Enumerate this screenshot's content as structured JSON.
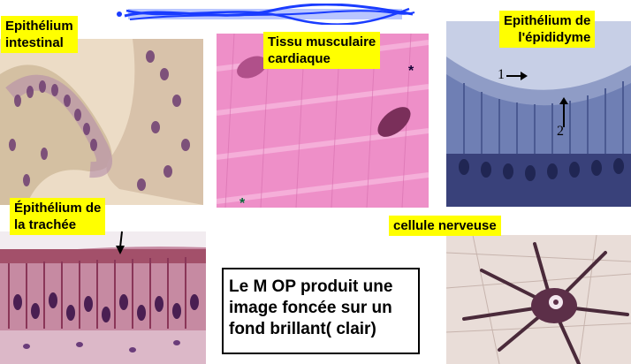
{
  "labels": {
    "intestinal": "Epithélium\nintestinal",
    "cardiac": "Tissu musculaire\ncardiaque",
    "epididymis": "Epithélium de\nl'épididyme",
    "trachea": "Épithélium de\nla trachée",
    "neuron": "cellule nerveuse"
  },
  "caption": "Le M OP produit une image foncée sur un fond brillant( clair)",
  "annotations": {
    "arrow_1": "1",
    "arrow_2": "2",
    "asterisk_top": "*",
    "asterisk_bottom": "*"
  },
  "colors": {
    "label_bg": "#ffff00",
    "scribble": "#1a3cff",
    "cardiac_pink": "#ee8fc8",
    "he_purple": "#6a2c6e",
    "epididymis_blue": "#4c5a96"
  }
}
